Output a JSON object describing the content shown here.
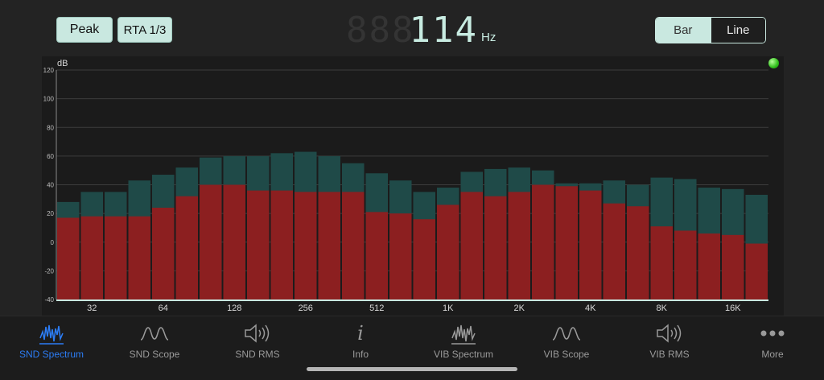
{
  "topbar": {
    "peak_label": "Peak",
    "rta_label": "RTA 1/3",
    "frequency_ghost": "888",
    "frequency_value": "114",
    "frequency_unit": "Hz",
    "view_options": [
      "Bar",
      "Line"
    ],
    "selected_view": "Bar"
  },
  "status": {
    "indicator_color": "#2fbf1b"
  },
  "chart_data": {
    "type": "bar",
    "ylabel": "dB",
    "ylim": [
      -40,
      120
    ],
    "yticks": [
      "120",
      "100",
      "80",
      "60",
      "40",
      "20",
      "0",
      "-20",
      "-40"
    ],
    "xtick_labels": [
      "32",
      "64",
      "128",
      "256",
      "512",
      "1K",
      "2K",
      "4K",
      "8K",
      "16K"
    ],
    "grid": true,
    "series": [
      {
        "values": [
          28,
          35,
          35,
          43,
          47,
          52,
          59,
          60,
          60,
          62,
          63,
          60,
          55,
          48,
          43,
          35,
          38,
          49,
          51,
          52,
          50,
          41,
          41,
          43,
          40,
          45,
          44,
          38,
          37,
          33
        ],
        "color": "#1f4a48"
      },
      {
        "values": [
          17,
          18,
          18,
          18,
          24,
          32,
          40,
          40,
          36,
          36,
          35,
          35,
          35,
          21,
          20,
          16,
          26,
          35,
          32,
          35,
          40,
          39,
          36,
          27,
          25,
          11,
          8,
          6,
          5,
          -1
        ],
        "color": "#8c1f20"
      }
    ]
  },
  "tabbar": {
    "items": [
      {
        "label": "SND Spectrum",
        "icon": "spectrum-icon"
      },
      {
        "label": "SND Scope",
        "icon": "wave-icon"
      },
      {
        "label": "SND RMS",
        "icon": "speaker-icon"
      },
      {
        "label": "Info",
        "icon": "info-icon"
      },
      {
        "label": "VIB Spectrum",
        "icon": "spectrum-icon"
      },
      {
        "label": "VIB Scope",
        "icon": "wave-icon"
      },
      {
        "label": "VIB RMS",
        "icon": "speaker-icon"
      },
      {
        "label": "More",
        "icon": "more-icon"
      }
    ],
    "active_color": "#2c7df6",
    "inactive_color": "#9a9a9a"
  }
}
